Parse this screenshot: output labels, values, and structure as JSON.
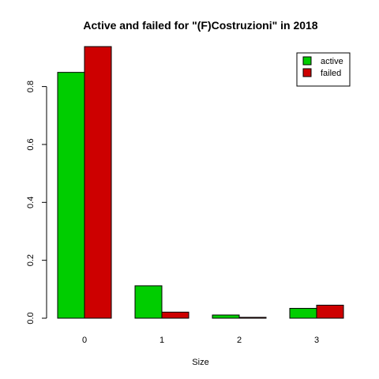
{
  "chart_data": {
    "type": "bar",
    "title": "Active and failed for \"(F)Costruzioni\" in 2018",
    "xlabel": "Size",
    "ylabel": "",
    "categories": [
      "0",
      "1",
      "2",
      "3"
    ],
    "series": [
      {
        "name": "active",
        "color": "#00cd00",
        "values": [
          0.849,
          0.112,
          0.011,
          0.034
        ]
      },
      {
        "name": "failed",
        "color": "#cd0000",
        "values": [
          0.938,
          0.021,
          0.003,
          0.045
        ]
      }
    ],
    "ylim": [
      0,
      0.938
    ],
    "yticks": [
      "0.0",
      "0.2",
      "0.4",
      "0.6",
      "0.8"
    ],
    "grid": false,
    "legend_position": "top-right"
  }
}
